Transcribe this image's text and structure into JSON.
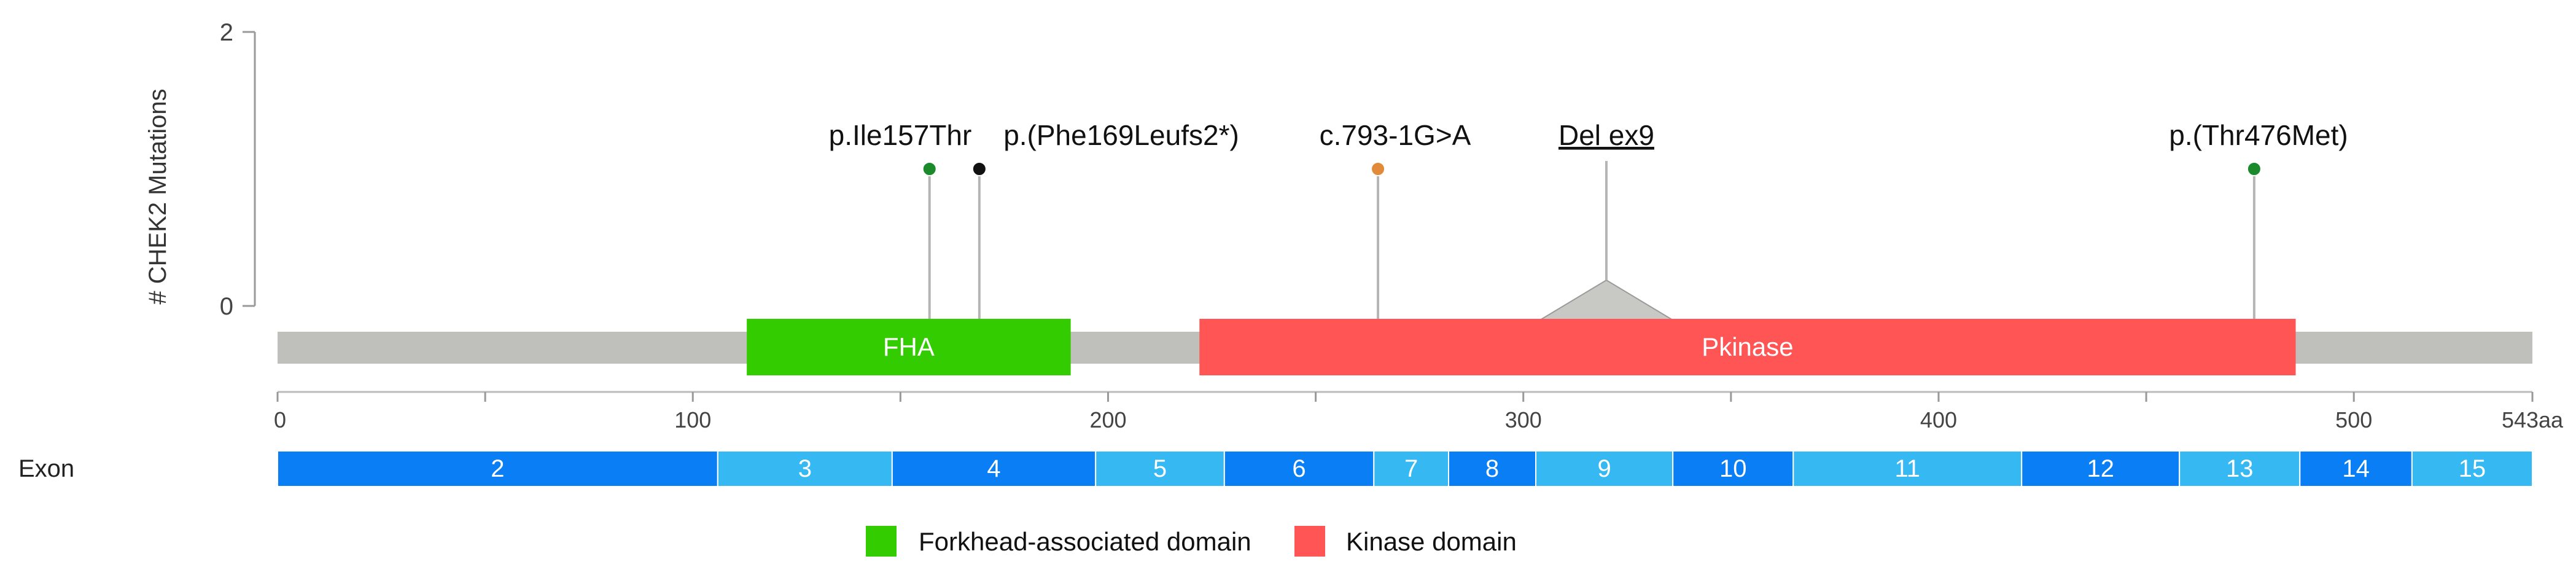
{
  "chart_data": {
    "type": "lollipop",
    "gene": "CHEK2",
    "ylabel": "# CHEK2 Mutations",
    "ylim": [
      0,
      2
    ],
    "yticks": [
      "0",
      "2"
    ],
    "xlim": [
      0,
      543
    ],
    "xticks": [
      {
        "value": 0,
        "label": "0"
      },
      {
        "value": 100,
        "label": "100"
      },
      {
        "value": 200,
        "label": "200"
      },
      {
        "value": 300,
        "label": "300"
      },
      {
        "value": 400,
        "label": "400"
      },
      {
        "value": 500,
        "label": "500"
      },
      {
        "value": 543,
        "label": "543aa"
      }
    ],
    "minor_ticks": [
      50,
      150,
      250,
      350,
      450
    ],
    "protein_length": 543,
    "mutations": [
      {
        "label": "p.Ile157Thr",
        "position": 157,
        "count": 1,
        "color": "#1a8a2a",
        "type": "point"
      },
      {
        "label": "p.(Phe169Leufs2*)",
        "position": 169,
        "count": 1,
        "color": "#111111",
        "type": "point"
      },
      {
        "label": "c.793-1G>A",
        "position": 265,
        "count": 1,
        "color": "#e08a3a",
        "type": "point"
      },
      {
        "label": "Del ex9",
        "position": 320,
        "start": 304,
        "end": 336,
        "count": 1,
        "type": "range",
        "underline": true
      },
      {
        "label": "p.(Thr476Met)",
        "position": 476,
        "count": 1,
        "color": "#1a8a2a",
        "type": "point"
      }
    ],
    "domains": [
      {
        "label": "FHA",
        "start": 113,
        "end": 191,
        "color": "#33cc00"
      },
      {
        "label": "Pkinase",
        "start": 222,
        "end": 486,
        "color": "#ff5555"
      }
    ],
    "exons": {
      "title": "Exon",
      "items": [
        {
          "label": "2",
          "start": 0,
          "end": 106,
          "color": "#0a7ff5"
        },
        {
          "label": "3",
          "start": 106,
          "end": 148,
          "color": "#36b9f2"
        },
        {
          "label": "4",
          "start": 148,
          "end": 197,
          "color": "#0a7ff5"
        },
        {
          "label": "5",
          "start": 197,
          "end": 228,
          "color": "#36b9f2"
        },
        {
          "label": "6",
          "start": 228,
          "end": 264,
          "color": "#0a7ff5"
        },
        {
          "label": "7",
          "start": 264,
          "end": 282,
          "color": "#36b9f2"
        },
        {
          "label": "8",
          "start": 282,
          "end": 303,
          "color": "#0a7ff5"
        },
        {
          "label": "9",
          "start": 303,
          "end": 336,
          "color": "#36b9f2"
        },
        {
          "label": "10",
          "start": 336,
          "end": 365,
          "color": "#0a7ff5"
        },
        {
          "label": "11",
          "start": 365,
          "end": 420,
          "color": "#36b9f2"
        },
        {
          "label": "12",
          "start": 420,
          "end": 458,
          "color": "#0a7ff5"
        },
        {
          "label": "13",
          "start": 458,
          "end": 487,
          "color": "#36b9f2"
        },
        {
          "label": "14",
          "start": 487,
          "end": 514,
          "color": "#0a7ff5"
        },
        {
          "label": "15",
          "start": 514,
          "end": 543,
          "color": "#36b9f2"
        }
      ]
    },
    "legend": [
      {
        "label": "Forkhead-associated domain",
        "color": "#33cc00"
      },
      {
        "label": "Kinase domain",
        "color": "#ff5555"
      }
    ],
    "backbone_color": "#bfbfbb",
    "stem_color": "#b5b5b5"
  }
}
